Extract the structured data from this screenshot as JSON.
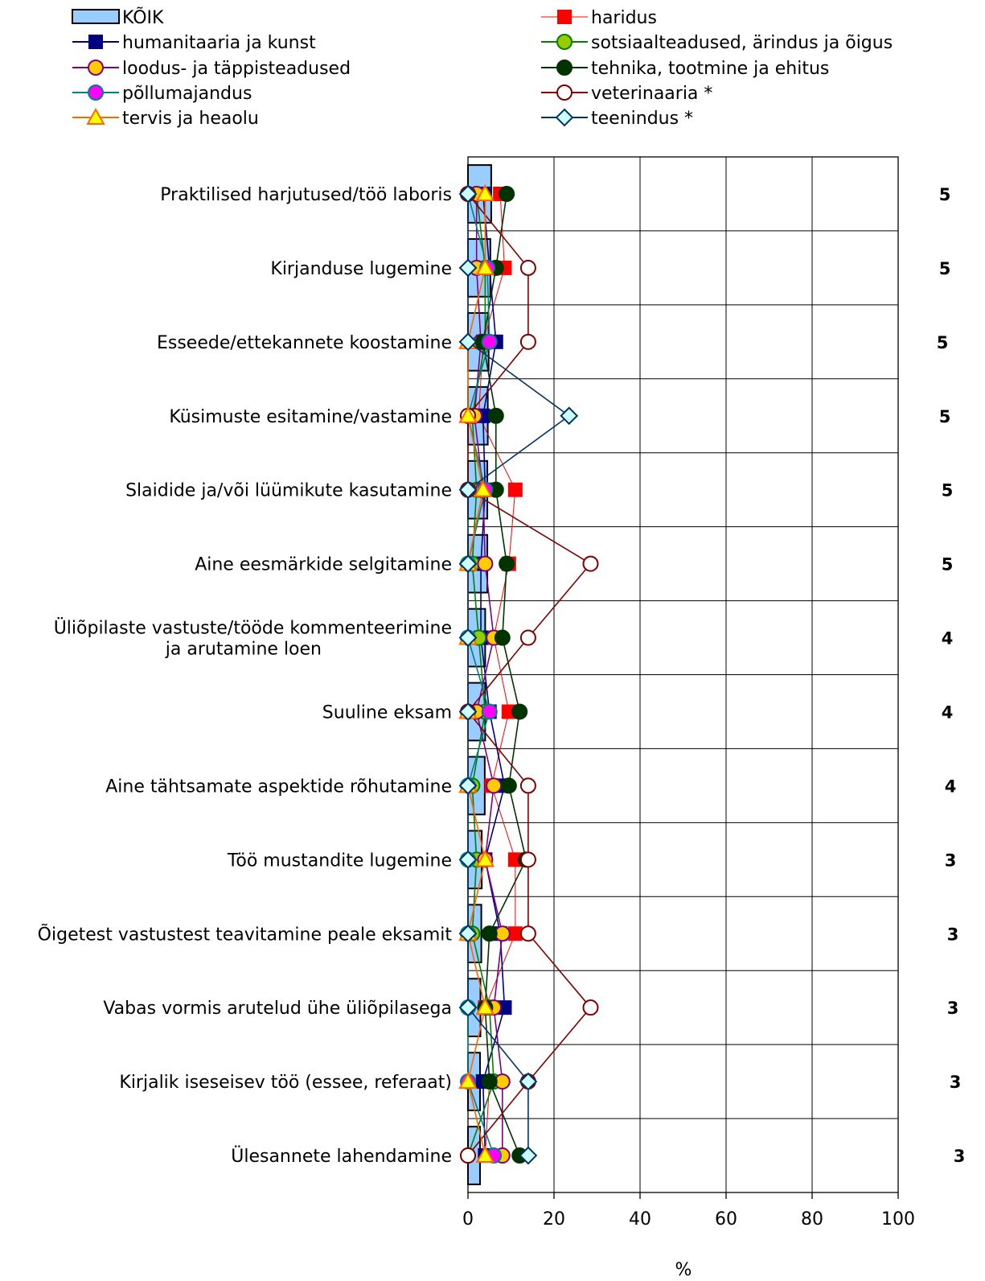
{
  "chart_data": {
    "type": "bar",
    "orientation": "horizontal",
    "xlabel": "%",
    "xlim": [
      0,
      100
    ],
    "xticks": [
      0,
      20,
      40,
      60,
      80,
      100
    ],
    "grid": true,
    "legend_position": "top",
    "categories": [
      [
        "Praktilised harjutused/töö laboris"
      ],
      [
        "Kirjanduse lugemine"
      ],
      [
        "Esseede/ettekannete koostamine"
      ],
      [
        "Küsimuste esitamine/vastamine"
      ],
      [
        "Slaidide ja/või lüümikute kasutamine"
      ],
      [
        "Aine eesmärkide selgitamine"
      ],
      [
        "Üliõpilaste vastuste/tööde kommenteerimine",
        "ja arutamine loen"
      ],
      [
        "Suuline eksam"
      ],
      [
        "Aine tähtsamate aspektide rõhutamine"
      ],
      [
        "Töö mustandite lugemine"
      ],
      [
        "Õigetest vastustest teavitamine peale eksamit"
      ],
      [
        "Vabas vormis arutelud ühe üliõpilasega"
      ],
      [
        "Kirjalik iseseisev töö (essee, referaat)"
      ],
      [
        "Ülesannete lahendamine"
      ]
    ],
    "totals": [
      "5",
      "5",
      "5",
      "5",
      "5",
      "5",
      "4",
      "4",
      "4",
      "3",
      "3",
      "3",
      "3",
      "3"
    ],
    "bar_series": {
      "name": "KÕIK",
      "color": "#99ccff",
      "values": [
        5.4,
        5.2,
        4.8,
        4.6,
        4.5,
        4.5,
        4.0,
        4.0,
        3.9,
        3.2,
        3.1,
        2.9,
        2.8,
        2.8
      ]
    },
    "series": [
      {
        "name": "haridus",
        "color": "#ff0000",
        "line": "#ff0000",
        "marker": "square",
        "fill": "#ff0000",
        "values": [
          7.5,
          8.5,
          3.5,
          2.5,
          11,
          9.5,
          6,
          9.5,
          5.5,
          11,
          11,
          4,
          5,
          4
        ]
      },
      {
        "name": "humanitaaria ja kunst",
        "color": "#000080",
        "line": "#000080",
        "marker": "square",
        "fill": "#000080",
        "values": [
          3.5,
          5,
          6.5,
          3.5,
          4,
          3,
          3,
          5,
          8.5,
          4,
          7.5,
          8.5,
          3.5,
          4
        ]
      },
      {
        "name": "sotsiaalteadused, ärindus ja õigus",
        "color": "#008000",
        "line": "#008000",
        "marker": "circle",
        "fill": "#99cc00",
        "values": [
          2,
          4,
          4,
          1,
          2,
          1,
          2.5,
          4,
          1,
          2,
          1,
          5,
          6,
          0
        ]
      },
      {
        "name": "loodus- ja täppisteadused",
        "color": "#800080",
        "line": "#800080",
        "marker": "circle",
        "fill": "#ffcc00",
        "values": [
          2,
          2,
          3,
          1.5,
          3.5,
          4,
          6,
          2,
          6,
          4,
          8,
          6,
          8,
          8
        ]
      },
      {
        "name": "tehnika, tootmine ja ehitus",
        "color": "#003300",
        "line": "#003300",
        "marker": "circle",
        "fill": "#003300",
        "values": [
          9,
          6.5,
          3.5,
          6.5,
          6.5,
          9,
          8,
          12,
          9.5,
          13.5,
          5,
          4,
          5,
          12
        ]
      },
      {
        "name": "põllumajandus",
        "color": "#008080",
        "line": "#008080",
        "marker": "circle",
        "fill": "#ff00ff",
        "values": [
          0,
          4.5,
          5,
          0,
          4,
          0,
          0,
          5,
          0,
          0,
          0,
          0,
          0,
          6
        ]
      },
      {
        "name": "veterinaaria *",
        "color": "#800000",
        "line": "#800000",
        "marker": "circle",
        "fill": "#ffffff",
        "values": [
          0,
          14,
          14,
          0,
          0,
          28.5,
          14,
          0,
          14,
          14,
          14,
          28.5,
          14,
          0
        ]
      },
      {
        "name": "tervis ja heaolu",
        "color": "#ff6600",
        "line": "#ff6600",
        "marker": "triangle",
        "fill": "#ffff00",
        "values": [
          4,
          4,
          0,
          0,
          3.5,
          0,
          0,
          0,
          0,
          4,
          0,
          4,
          0,
          4
        ]
      },
      {
        "name": "teenindus *",
        "color": "#003366",
        "line": "#003366",
        "marker": "diamond",
        "fill": "#ccffff",
        "values": [
          0,
          0,
          0,
          23.5,
          0,
          0,
          0,
          0,
          0,
          0,
          0,
          0,
          14,
          14
        ]
      }
    ],
    "legend_bar_label": "KÕIK"
  }
}
